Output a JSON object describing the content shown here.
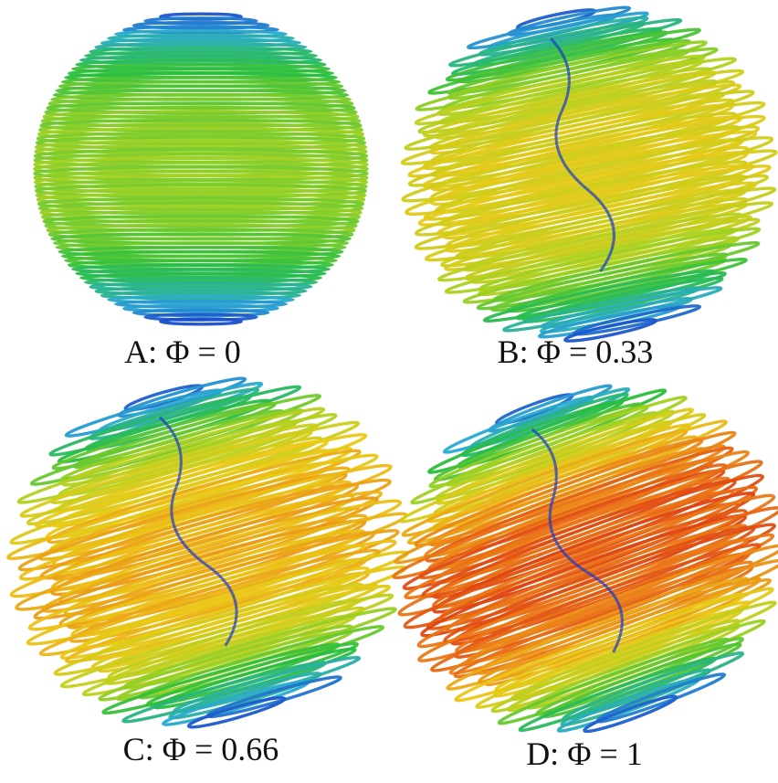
{
  "panels": [
    {
      "caption": "A:  Φ = 0"
    },
    {
      "caption": "B:  Φ = 0.33"
    },
    {
      "caption": "C:  Φ = 0.66"
    },
    {
      "caption": "D:  Φ = 1"
    }
  ]
}
